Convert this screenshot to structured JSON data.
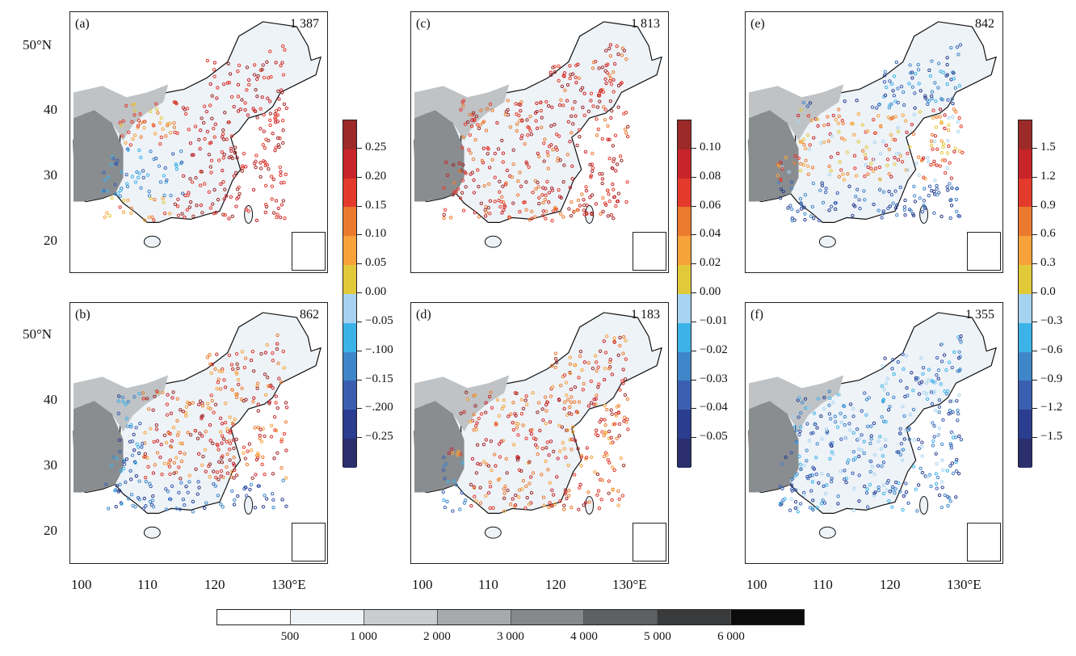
{
  "panels": [
    {
      "id": "a",
      "label": "(a)",
      "count": "1 387",
      "scheme": "warm-south"
    },
    {
      "id": "b",
      "label": "(b)",
      "count": "862",
      "scheme": "mixed"
    },
    {
      "id": "c",
      "label": "(c)",
      "count": "1 813",
      "scheme": "warm"
    },
    {
      "id": "d",
      "label": "(d)",
      "count": "1 183",
      "scheme": "warm-mixed"
    },
    {
      "id": "e",
      "label": "(e)",
      "count": "842",
      "scheme": "cool-north"
    },
    {
      "id": "f",
      "label": "(f)",
      "count": "1 355",
      "scheme": "cool"
    }
  ],
  "lat_labels": [
    "50°N",
    "40",
    "30",
    "20"
  ],
  "lon_labels": [
    "100",
    "110",
    "120",
    "130°E"
  ],
  "colorbars": [
    {
      "id": "cb1",
      "ticks": [
        "0.25",
        "0.20",
        "0.15",
        "0.10",
        "0.05",
        "0.00",
        "−0.05",
        "−.100",
        "−0.15",
        "−.200",
        "−0.25"
      ]
    },
    {
      "id": "cb2",
      "ticks": [
        "0.10",
        "0.08",
        "0.06",
        "0.04",
        "0.02",
        "0.00",
        "−0.01",
        "−0.02",
        "−0.03",
        "−0.04",
        "−0.05"
      ]
    },
    {
      "id": "cb3",
      "ticks": [
        "1.5",
        "1.2",
        "0.9",
        "0.6",
        "0.3",
        "0.0",
        "−0.3",
        "−0.6",
        "−0.9",
        "−1.2",
        "−1.5"
      ]
    }
  ],
  "colors": [
    "#9b2a28",
    "#c8252a",
    "#e33a2c",
    "#ec7a2e",
    "#f7a23a",
    "#e2c93a",
    "#a6d4f0",
    "#3cb3e8",
    "#3f86c8",
    "#3b5fb0",
    "#2a3d8f",
    "#2b2f6e"
  ],
  "elevation": {
    "ticks": [
      "500",
      "1 000",
      "2 000",
      "3 000",
      "4 000",
      "5 000",
      "6 000"
    ],
    "colors": [
      "#ffffff",
      "#eef3f8",
      "#c9cdd0",
      "#a6aaad",
      "#86898c",
      "#5e6163",
      "#3a3b3c",
      "#0c0c0c"
    ]
  }
}
